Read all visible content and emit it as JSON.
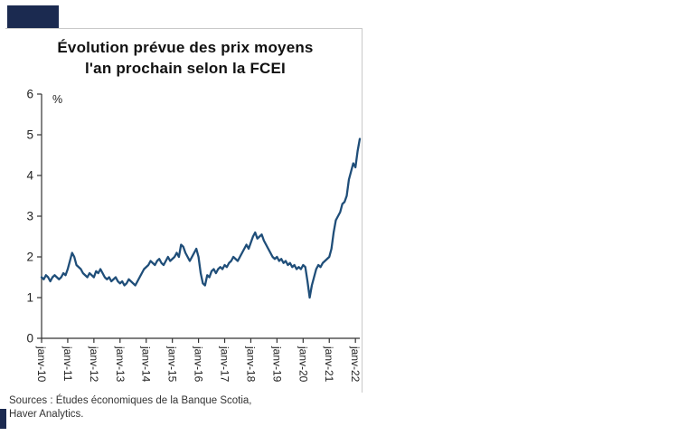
{
  "colors": {
    "line": "#1f4e79",
    "brand_box": "#1b2a50",
    "axis": "#333333",
    "tick_label": "#222222"
  },
  "title": {
    "line1": "Évolution prévue des prix moyens",
    "line2": "l'an prochain selon la FCEI"
  },
  "source": {
    "line1": "Sources : Études économiques de la Banque Scotia,",
    "line2": "Haver Analytics."
  },
  "chart_data": {
    "type": "line",
    "title": "Évolution prévue des prix moyens l'an prochain selon la FCEI",
    "ylabel": "%",
    "unit_label": "%",
    "ylim": [
      0,
      6
    ],
    "yticks": [
      0,
      1,
      2,
      3,
      4,
      5,
      6
    ],
    "grid": false,
    "legend": false,
    "frequency": "monthly",
    "x_start": "janv-2010",
    "x_end": "mars-2022",
    "x_tick_labels": [
      "janv-10",
      "janv-11",
      "janv-12",
      "janv-13",
      "janv-14",
      "janv-15",
      "janv-16",
      "janv-17",
      "janv-18",
      "janv-19",
      "janv-20",
      "janv-21",
      "janv-22"
    ],
    "series": [
      {
        "name": "Évolution prévue des prix moyens l'an prochain (FCEI, %)",
        "values": [
          1.5,
          1.45,
          1.55,
          1.5,
          1.4,
          1.5,
          1.55,
          1.5,
          1.45,
          1.5,
          1.6,
          1.55,
          1.7,
          1.9,
          2.1,
          2.0,
          1.8,
          1.75,
          1.7,
          1.6,
          1.55,
          1.5,
          1.6,
          1.55,
          1.5,
          1.65,
          1.6,
          1.7,
          1.6,
          1.5,
          1.45,
          1.5,
          1.4,
          1.45,
          1.5,
          1.4,
          1.35,
          1.4,
          1.3,
          1.35,
          1.45,
          1.4,
          1.35,
          1.3,
          1.4,
          1.5,
          1.6,
          1.7,
          1.75,
          1.8,
          1.9,
          1.85,
          1.8,
          1.9,
          1.95,
          1.85,
          1.8,
          1.9,
          2.0,
          1.9,
          1.95,
          2.0,
          2.1,
          2.0,
          2.3,
          2.25,
          2.1,
          2.0,
          1.9,
          2.0,
          2.1,
          2.2,
          2.0,
          1.6,
          1.35,
          1.3,
          1.55,
          1.5,
          1.65,
          1.7,
          1.6,
          1.7,
          1.75,
          1.7,
          1.8,
          1.75,
          1.85,
          1.9,
          2.0,
          1.95,
          1.9,
          2.0,
          2.1,
          2.2,
          2.3,
          2.2,
          2.35,
          2.5,
          2.6,
          2.45,
          2.5,
          2.55,
          2.4,
          2.3,
          2.2,
          2.1,
          2.0,
          1.95,
          2.0,
          1.9,
          1.95,
          1.85,
          1.9,
          1.8,
          1.85,
          1.75,
          1.8,
          1.7,
          1.75,
          1.7,
          1.8,
          1.75,
          1.4,
          1.0,
          1.3,
          1.5,
          1.7,
          1.8,
          1.75,
          1.85,
          1.9,
          1.95,
          2.0,
          2.2,
          2.6,
          2.9,
          3.0,
          3.1,
          3.3,
          3.35,
          3.5,
          3.9,
          4.1,
          4.3,
          4.2,
          4.6,
          4.9
        ]
      }
    ]
  }
}
